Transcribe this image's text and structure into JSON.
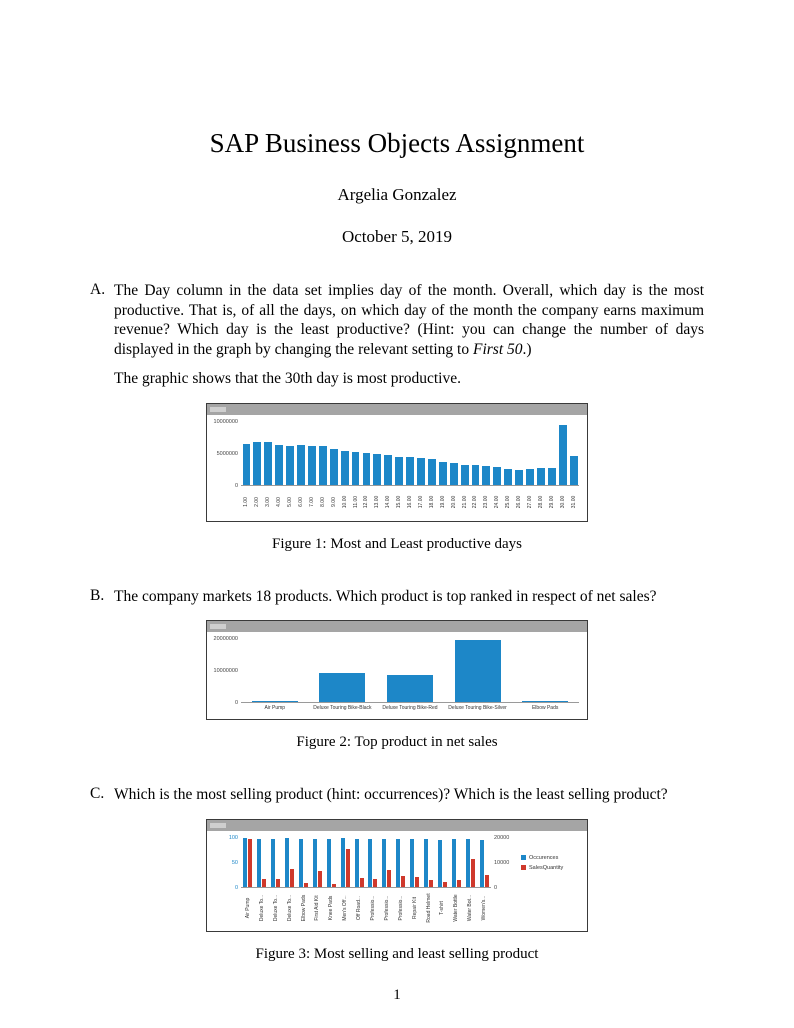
{
  "title": "SAP Business Objects Assignment",
  "author": "Argelia Gonzalez",
  "date": "October 5, 2019",
  "page": {
    "number": "1"
  },
  "items": {
    "a": {
      "label": "A.",
      "text_main": "The Day column in the data set implies day of the month.  Overall, which day is the most productive.  That is, of all the days, on which day of the month the company earns maximum revenue? Which day is the least productive? (Hint: you can change the number of days displayed in the graph by changing the relevant setting to ",
      "text_italic": "First 50",
      "text_after": ".)",
      "text_answer": "The graphic shows that the 30th day is most productive."
    },
    "b": {
      "label": "B.",
      "text": "The company markets 18 products. Which product is top ranked in respect of net sales?"
    },
    "c": {
      "label": "C.",
      "text": "Which is the most selling product (hint: occurrences)? Which is the least selling product?"
    }
  },
  "figures": {
    "fig1": {
      "caption": "Figure 1: Most and Least productive days"
    },
    "fig2": {
      "caption": "Figure 2: Top product in net sales"
    },
    "fig3": {
      "caption": "Figure 3: Most selling and least selling product"
    }
  },
  "colors": {
    "bar_blue": "#1d87c8",
    "bar_red": "#cf392c",
    "chart_header": "#a5a5a5"
  },
  "chart_data": [
    {
      "type": "bar",
      "title": "Revenue by day of month",
      "categories": [
        "1.00",
        "2.00",
        "3.00",
        "4.00",
        "5.00",
        "6.00",
        "7.00",
        "8.00",
        "9.00",
        "10.00",
        "11.00",
        "12.00",
        "13.00",
        "14.00",
        "15.00",
        "16.00",
        "17.00",
        "18.00",
        "19.00",
        "20.00",
        "21.00",
        "22.00",
        "23.00",
        "24.00",
        "25.00",
        "26.00",
        "27.00",
        "28.00",
        "29.00",
        "30.00",
        "31.00"
      ],
      "values": [
        6500000,
        6800000,
        6700000,
        6300000,
        6150000,
        6250000,
        6150000,
        6050000,
        5700000,
        5350000,
        5150000,
        4950000,
        4850000,
        4750000,
        4450000,
        4350000,
        4150000,
        4000000,
        3600000,
        3350000,
        3150000,
        3050000,
        2950000,
        2750000,
        2500000,
        2300000,
        2400000,
        2600000,
        2700000,
        9500000,
        4500000
      ],
      "ylim": [
        0,
        10000000
      ],
      "yticks": [
        0,
        5000000,
        10000000
      ],
      "bar_color": "#1d87c8",
      "grid": false,
      "x_label_rotation": 90
    },
    {
      "type": "bar",
      "title": "Net sales by product (top 5 shown)",
      "categories": [
        "Air Pump",
        "Deluxe Touring Bike-Black",
        "Deluxe Touring Bike-Red",
        "Deluxe Touring Bike-Silver",
        "Elbow Pads"
      ],
      "values": [
        180000,
        9200000,
        8600000,
        19600000,
        160000
      ],
      "ylim": [
        0,
        20000000
      ],
      "yticks": [
        0,
        10000000,
        20000000
      ],
      "bar_color": "#1d87c8",
      "grid": false,
      "x_label_rotation": 0
    },
    {
      "type": "bar-dual-axis",
      "title": "Occurrences and sales quantity by product",
      "categories": [
        "Air Pump",
        "Deluxe To...",
        "Deluxe To...",
        "Deluxe To...",
        "Elbow Pads",
        "First Aid Kit",
        "Knee Pads",
        "Men's Off...",
        "Off Road...",
        "Professio...",
        "Professio...",
        "Professio...",
        "Repair Kit",
        "Road Helmet",
        "T-shirt",
        "Water Bottle",
        "Water Bot...",
        "Women's..."
      ],
      "series": [
        {
          "name": "Occurences",
          "axis": "left",
          "color": "#1d87c8",
          "values": [
            100,
            98,
            98,
            99,
            97,
            98,
            97,
            99,
            98,
            97,
            98,
            98,
            97,
            98,
            96,
            98,
            98,
            96
          ]
        },
        {
          "name": "SalesQuantity",
          "axis": "right",
          "color": "#cf392c",
          "values": [
            19500,
            3000,
            3000,
            7200,
            1600,
            6300,
            1200,
            15300,
            3700,
            3000,
            6700,
            4300,
            4000,
            2500,
            1700,
            2500,
            11300,
            4700
          ]
        }
      ],
      "left_axis": {
        "lim": [
          0,
          100
        ],
        "ticks": [
          0,
          50,
          100
        ]
      },
      "right_axis": {
        "lim": [
          0,
          20000
        ],
        "ticks": [
          0,
          10000,
          20000
        ]
      },
      "legend": [
        "Occurences",
        "SalesQuantity"
      ],
      "legend_position": "right",
      "grid": false,
      "x_label_rotation": 90
    }
  ]
}
